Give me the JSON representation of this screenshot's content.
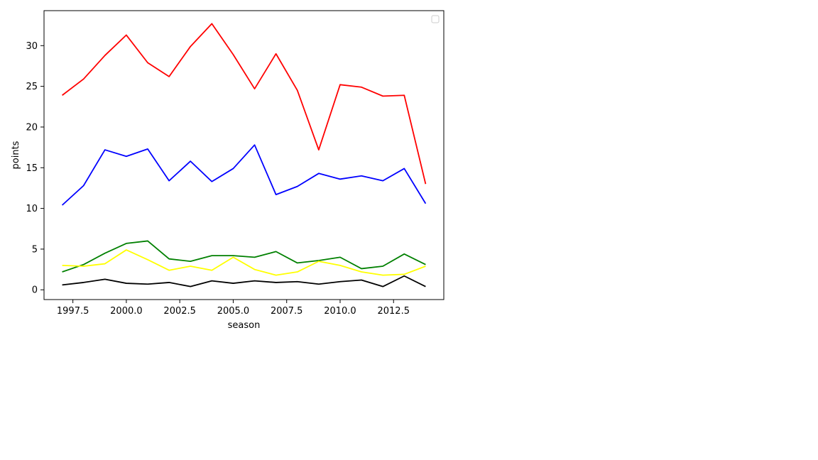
{
  "chart_data": {
    "type": "line",
    "title": "",
    "xlabel": "season",
    "ylabel": "points",
    "xlim": [
      1996.15,
      2014.85
    ],
    "ylim": [
      -1.2,
      34.3
    ],
    "x_ticks": [
      1997.5,
      2000.0,
      2002.5,
      2005.0,
      2007.5,
      2010.0,
      2012.5
    ],
    "x_tick_labels": [
      "1997.5",
      "2000.0",
      "2002.5",
      "2005.0",
      "2007.5",
      "2010.0",
      "2012.5"
    ],
    "y_ticks": [
      0,
      5,
      10,
      15,
      20,
      25,
      30
    ],
    "y_tick_labels": [
      "0",
      "5",
      "10",
      "15",
      "20",
      "25",
      "30"
    ],
    "grid": false,
    "legend": {
      "placement": "top-right",
      "entries": []
    },
    "x": [
      1997,
      1998,
      1999,
      2000,
      2001,
      2002,
      2003,
      2004,
      2005,
      2006,
      2007,
      2008,
      2009,
      2010,
      2011,
      2012,
      2013,
      2014
    ],
    "series": [
      {
        "color": "#ff0000",
        "values": [
          23.9,
          25.9,
          28.8,
          31.3,
          27.9,
          26.2,
          29.9,
          32.7,
          28.9,
          24.7,
          29.0,
          24.5,
          17.2,
          25.2,
          24.9,
          23.8,
          23.9,
          13.0
        ]
      },
      {
        "color": "#0000ff",
        "values": [
          10.4,
          12.8,
          17.2,
          16.4,
          17.3,
          13.4,
          15.8,
          13.3,
          14.9,
          17.8,
          11.7,
          12.7,
          14.3,
          13.6,
          14.0,
          13.4,
          14.9,
          10.6
        ]
      },
      {
        "color": "#008000",
        "values": [
          2.2,
          3.1,
          4.5,
          5.7,
          6.0,
          3.8,
          3.5,
          4.2,
          4.2,
          4.0,
          4.7,
          3.3,
          3.6,
          4.0,
          2.6,
          2.9,
          4.4,
          3.1
        ]
      },
      {
        "color": "#ffff00",
        "values": [
          3.0,
          2.9,
          3.2,
          4.9,
          3.7,
          2.4,
          2.9,
          2.4,
          4.0,
          2.5,
          1.8,
          2.2,
          3.5,
          3.0,
          2.2,
          1.8,
          1.9,
          2.9
        ]
      },
      {
        "color": "#000000",
        "values": [
          0.6,
          0.9,
          1.3,
          0.8,
          0.7,
          0.9,
          0.4,
          1.1,
          0.8,
          1.1,
          0.9,
          1.0,
          0.7,
          1.0,
          1.2,
          0.4,
          1.7,
          0.4
        ]
      }
    ]
  }
}
